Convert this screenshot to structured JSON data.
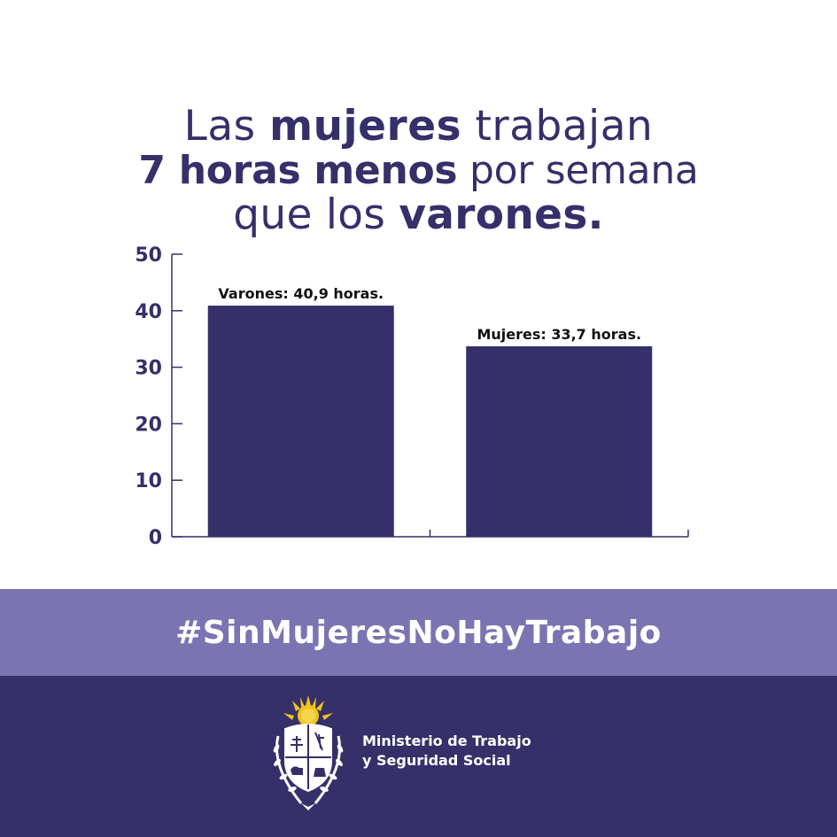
{
  "headline": {
    "line1": {
      "a": "Las ",
      "b": "mujeres",
      "c": " trabajan"
    },
    "line2": {
      "a": "7 horas menos",
      "b": " por semana"
    },
    "line3": {
      "a": "que los ",
      "b": "varones."
    }
  },
  "chart_data": {
    "type": "bar",
    "categories": [
      "Varones",
      "Mujeres"
    ],
    "values": [
      40.9,
      33.7
    ],
    "data_labels": [
      "Varones: 40,9 horas.",
      "Mujeres: 33,7 horas."
    ],
    "yticks": [
      "0",
      "10",
      "20",
      "30",
      "40",
      "50"
    ],
    "ylim": [
      0,
      50
    ],
    "bar_color": "#35306a",
    "axis_color": "#35306a",
    "grid": false,
    "title": "",
    "xlabel": "",
    "ylabel": ""
  },
  "hashtag": "#SinMujeresNoHayTrabajo",
  "footer": {
    "ministry_line1": "Ministerio de Trabajo",
    "ministry_line2": "y Seguridad Social",
    "background_color": "#35306a"
  },
  "colors": {
    "primary": "#35306a",
    "band": "#7a74b2",
    "background": "#ffffff",
    "sun": "#f0c419"
  },
  "icons": [
    "uruguay-coat-of-arms-icon"
  ]
}
